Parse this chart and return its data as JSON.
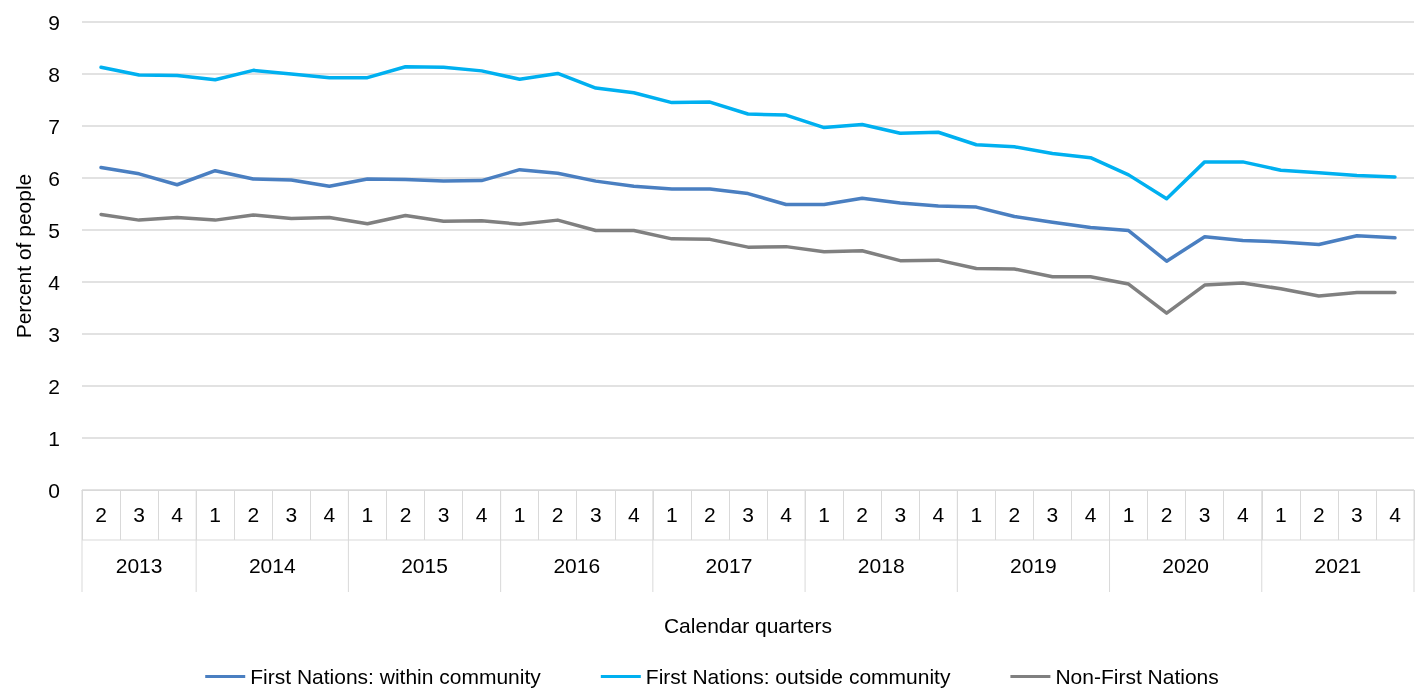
{
  "chart_data": {
    "type": "line",
    "xlabel": "Calendar quarters",
    "ylabel": "Percent of people",
    "categories": [
      "2",
      "3",
      "4",
      "1",
      "2",
      "3",
      "4",
      "1",
      "2",
      "3",
      "4",
      "1",
      "2",
      "3",
      "4",
      "1",
      "2",
      "3",
      "4",
      "1",
      "2",
      "3",
      "4",
      "1",
      "2",
      "3",
      "4",
      "1",
      "2",
      "3",
      "4",
      "1",
      "2",
      "3",
      "4"
    ],
    "annotations": [
      "2013",
      "2014",
      "2015",
      "2016",
      "2017",
      "2018",
      "2019",
      "2020",
      "2021"
    ],
    "ylim": [
      0,
      9
    ],
    "yticks": [
      0,
      1,
      2,
      3,
      4,
      5,
      6,
      7,
      8,
      9
    ],
    "grid": "y",
    "legend": "bottom",
    "line_style": "solid",
    "marker": "none",
    "series": [
      {
        "name": "First Nations: within community",
        "color": "#4a7fc1",
        "values": [
          6.2,
          6.08,
          5.87,
          6.14,
          5.98,
          5.96,
          5.84,
          5.98,
          5.97,
          5.94,
          5.95,
          6.16,
          6.09,
          5.94,
          5.84,
          5.79,
          5.79,
          5.7,
          5.49,
          5.49,
          5.61,
          5.52,
          5.46,
          5.44,
          5.26,
          5.15,
          5.05,
          4.99,
          4.4,
          4.87,
          4.8,
          4.77,
          4.72,
          4.89,
          4.85
        ]
      },
      {
        "name": "First Nations: outside community",
        "color": "#00b0f0",
        "values": [
          8.13,
          7.98,
          7.97,
          7.89,
          8.07,
          8.0,
          7.93,
          7.93,
          8.14,
          8.13,
          8.06,
          7.9,
          8.01,
          7.73,
          7.64,
          7.45,
          7.46,
          7.23,
          7.21,
          6.97,
          7.03,
          6.86,
          6.88,
          6.64,
          6.6,
          6.47,
          6.39,
          6.06,
          5.6,
          6.31,
          6.31,
          6.15,
          6.1,
          6.05,
          6.02
        ]
      },
      {
        "name": "Non-First Nations",
        "color": "#808080",
        "values": [
          5.3,
          5.19,
          5.24,
          5.19,
          5.29,
          5.22,
          5.24,
          5.12,
          5.28,
          5.17,
          5.18,
          5.11,
          5.19,
          4.99,
          4.99,
          4.83,
          4.82,
          4.67,
          4.68,
          4.58,
          4.6,
          4.41,
          4.42,
          4.26,
          4.25,
          4.1,
          4.1,
          3.96,
          3.4,
          3.94,
          3.98,
          3.87,
          3.73,
          3.8,
          3.8
        ]
      }
    ]
  }
}
